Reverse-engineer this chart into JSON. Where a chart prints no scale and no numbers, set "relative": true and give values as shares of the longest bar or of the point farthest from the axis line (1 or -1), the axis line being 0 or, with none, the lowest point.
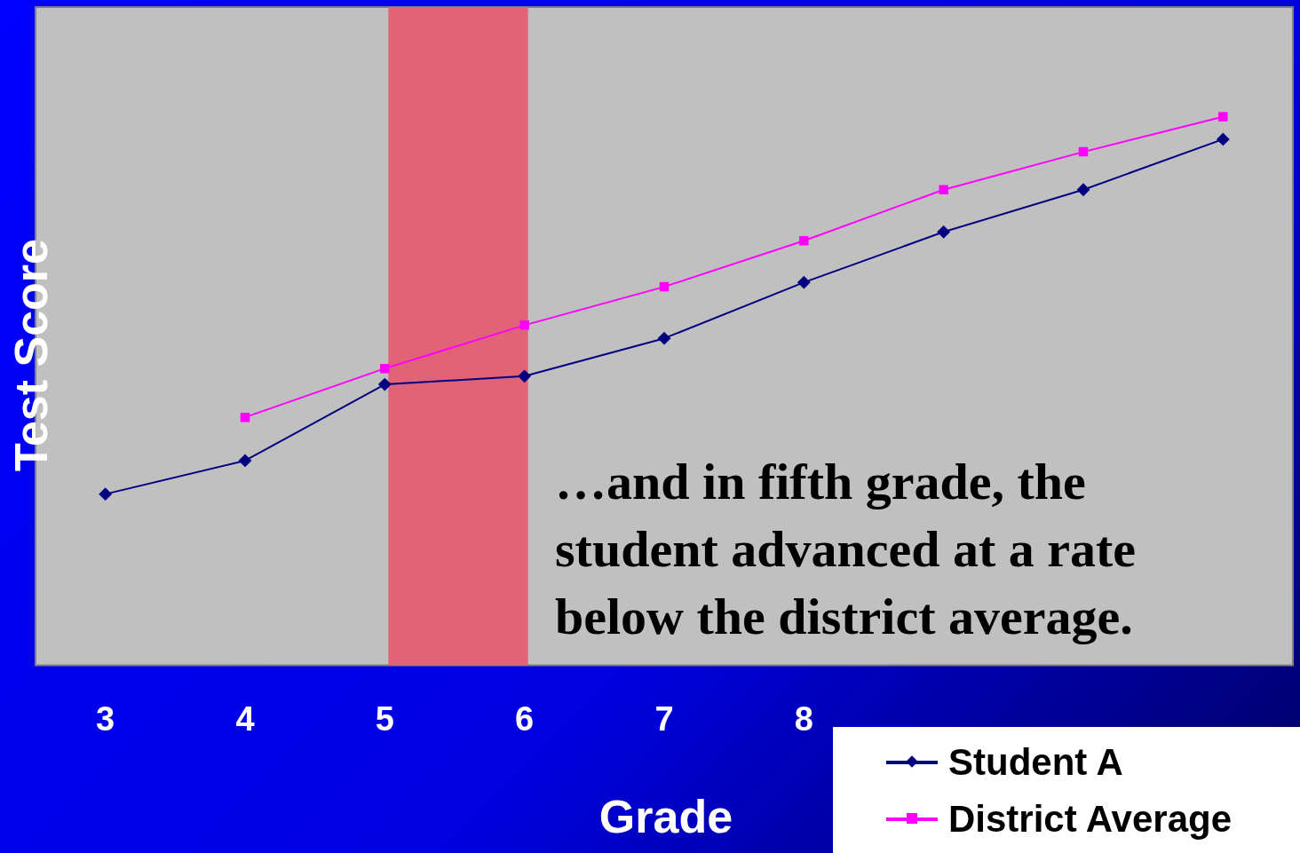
{
  "chart_data": {
    "type": "line",
    "relative": true,
    "xlabel": "Grade",
    "ylabel": "Test Score",
    "categories": [
      "3",
      "4",
      "5",
      "6",
      "7",
      "8",
      null,
      null,
      null
    ],
    "series": [
      {
        "name": "Student A",
        "color": "#000080",
        "marker": "diamond",
        "values": [
          0.312,
          0.373,
          0.512,
          0.527,
          0.596,
          0.698,
          0.79,
          0.867,
          0.959
        ]
      },
      {
        "name": "District Average",
        "color": "#ff00ff",
        "marker": "square",
        "values": [
          null,
          0.452,
          0.541,
          0.62,
          0.69,
          0.774,
          0.867,
          0.936,
          1
        ]
      }
    ],
    "bands": [
      {
        "axis": "x",
        "from": "5",
        "to": "6",
        "color": "#e06377"
      }
    ],
    "annotations": [
      "…and in fifth grade, the student advanced at a rate below the district average."
    ],
    "legend": "bottom right",
    "grid": false
  }
}
